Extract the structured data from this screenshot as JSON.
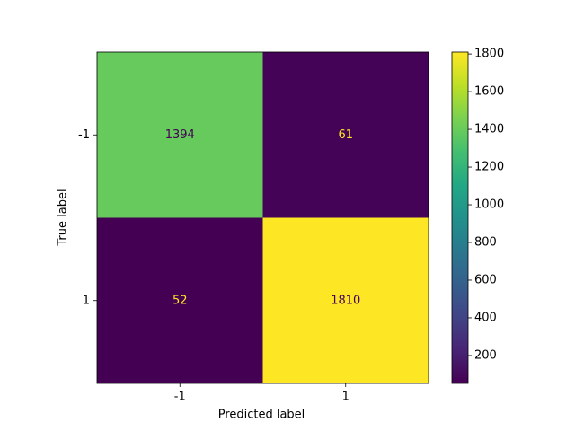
{
  "chart_data": {
    "type": "heatmap",
    "x_categories": [
      "-1",
      "1"
    ],
    "y_categories": [
      "-1",
      "1"
    ],
    "values": [
      [
        1394,
        61
      ],
      [
        52,
        1810
      ]
    ],
    "xlabel": "Predicted label",
    "ylabel": "True label",
    "colormap": "viridis",
    "clim": [
      52,
      1810
    ],
    "colorbar_ticks": [
      200,
      400,
      600,
      800,
      1000,
      1200,
      1400,
      1600,
      1800
    ]
  }
}
